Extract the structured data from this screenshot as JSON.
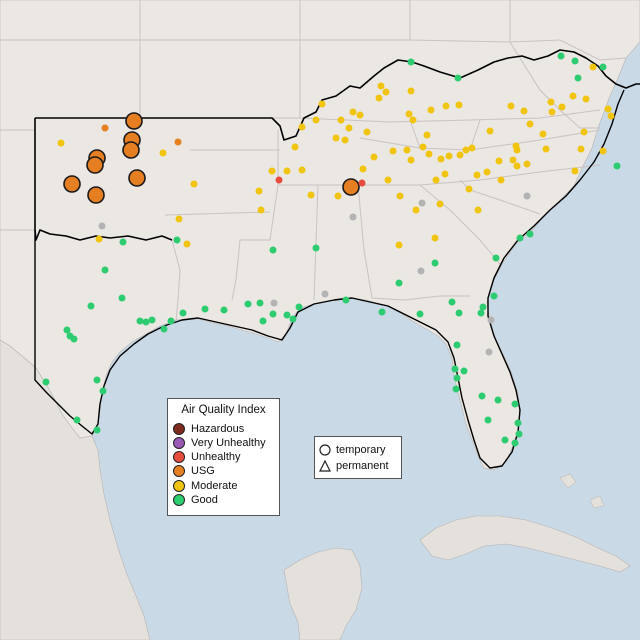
{
  "legend": {
    "title": "Air Quality Index",
    "categories": [
      {
        "label": "Hazardous",
        "color": "#7e2a1e"
      },
      {
        "label": "Very Unhealthy",
        "color": "#9b59b6"
      },
      {
        "label": "Unhealthy",
        "color": "#e74c3c"
      },
      {
        "label": "USG",
        "color": "#e67e22"
      },
      {
        "label": "Moderate",
        "color": "#f1c40f"
      },
      {
        "label": "Good",
        "color": "#2ecc71"
      }
    ],
    "no_data_color": "#b3b3b3"
  },
  "monitor_legend": {
    "temporary": {
      "label": "temporary",
      "symbol": "circle-icon"
    },
    "permanent": {
      "label": "permanent",
      "symbol": "triangle-icon"
    }
  },
  "colors": {
    "ocean": "#c9d9e6",
    "land": "#ebe7e3",
    "mexico_land": "#e4e0dc",
    "border": "#c9c3c3",
    "highlight": "#000000"
  }
}
